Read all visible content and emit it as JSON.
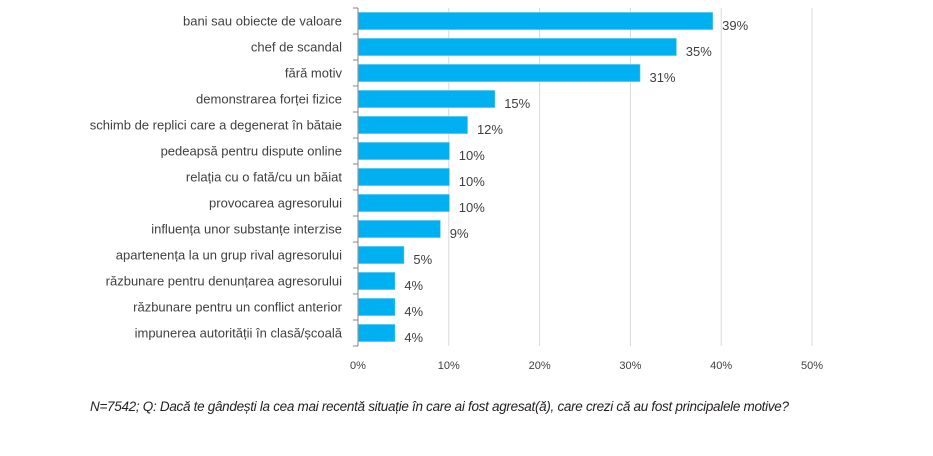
{
  "chart_data": {
    "type": "bar",
    "orientation": "horizontal",
    "title": "",
    "xlabel": "",
    "ylabel": "",
    "categories": [
      "bani sau obiecte de valoare",
      "chef de scandal",
      "fără motiv",
      "demonstrarea forței fizice",
      "schimb de replici  care a degenerat în bătaie",
      "pedeapsă pentru dispute online",
      "relația cu o fată/cu un băiat",
      "provocarea agresorului",
      "influența unor substanțe interzise",
      "apartenența la un grup rival agresorului",
      "răzbunare pentru denunțarea agresorului",
      "răzbunare pentru un conflict anterior",
      "impunerea autorității în clasă/școală"
    ],
    "values": [
      39,
      35,
      31,
      15,
      12,
      10,
      10,
      10,
      9,
      5,
      4,
      4,
      4
    ],
    "data_labels": [
      "39%",
      "35%",
      "31%",
      "15%",
      "12%",
      "10%",
      "10%",
      "10%",
      "9%",
      "5%",
      "4%",
      "4%",
      "4%"
    ],
    "xlim": [
      0,
      50
    ],
    "xticks": [
      0,
      10,
      20,
      30,
      40,
      50
    ],
    "xtick_labels": [
      "0%",
      "10%",
      "20%",
      "30%",
      "40%",
      "50%"
    ],
    "grid": true,
    "legend": "none",
    "bar_color": "#00b0f0"
  },
  "caption": "N=7542; Q: Dacă te gândești la cea mai recentă situație în care ai fost agresat(ă), care crezi că au fost principalele motive?"
}
